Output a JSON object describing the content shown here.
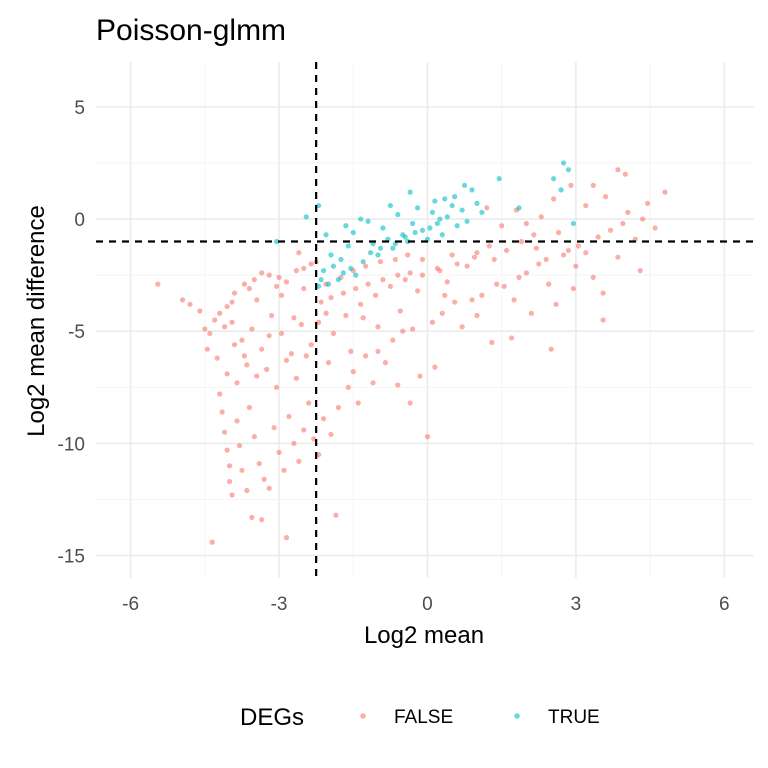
{
  "chart_data": {
    "type": "scatter",
    "title": "Poisson-glmm",
    "xlabel": "Log2 mean",
    "ylabel": "Log2 mean difference",
    "xlim": [
      -6.7,
      6.6
    ],
    "ylim": [
      -16,
      7
    ],
    "x_ticks": [
      -6,
      -3,
      0,
      3,
      6
    ],
    "x_tick_labels": [
      "-6",
      "-3",
      "0",
      "3",
      "6"
    ],
    "y_ticks": [
      5,
      0,
      -5,
      -10,
      -15
    ],
    "y_tick_labels": [
      "5",
      "0",
      "-5",
      "-10",
      "-15"
    ],
    "grid": true,
    "reference_lines": {
      "vertical_x": -2.25,
      "horizontal_y": -1
    },
    "legend": {
      "title": "DEGs",
      "position": "bottom"
    },
    "series": [
      {
        "name": "FALSE",
        "color": "#F8766D",
        "points": [
          [
            -5.45,
            -2.9
          ],
          [
            -4.95,
            -3.6
          ],
          [
            -4.8,
            -3.8
          ],
          [
            -4.6,
            -4.1
          ],
          [
            -4.4,
            -5.1
          ],
          [
            -4.3,
            -4.5
          ],
          [
            -4.2,
            -4.2
          ],
          [
            -4.05,
            -3.9
          ],
          [
            -3.9,
            -3.3
          ],
          [
            -3.7,
            -2.9
          ],
          [
            -3.5,
            -2.7
          ],
          [
            -3.35,
            -2.4
          ],
          [
            -3.2,
            -2.5
          ],
          [
            -3.0,
            -2.6
          ],
          [
            -2.85,
            -2.8
          ],
          [
            -2.65,
            -2.3
          ],
          [
            -2.5,
            -2.2
          ],
          [
            -2.35,
            -2.0
          ],
          [
            -2.25,
            -1.9
          ],
          [
            -2.6,
            -1.5
          ],
          [
            -4.2,
            -7.8
          ],
          [
            -4.15,
            -8.6
          ],
          [
            -4.1,
            -9.5
          ],
          [
            -4.05,
            -10.3
          ],
          [
            -4.0,
            -11.0
          ],
          [
            -4.0,
            -11.7
          ],
          [
            -3.95,
            -12.3
          ],
          [
            -3.85,
            -9.0
          ],
          [
            -3.8,
            -10.1
          ],
          [
            -3.75,
            -11.2
          ],
          [
            -3.65,
            -12.1
          ],
          [
            -3.6,
            -8.4
          ],
          [
            -3.5,
            -9.7
          ],
          [
            -3.4,
            -10.9
          ],
          [
            -3.3,
            -11.6
          ],
          [
            -3.2,
            -12.0
          ],
          [
            -3.1,
            -9.3
          ],
          [
            -3.0,
            -10.4
          ],
          [
            -2.9,
            -11.2
          ],
          [
            -2.8,
            -8.8
          ],
          [
            -2.7,
            -10.0
          ],
          [
            -2.6,
            -10.8
          ],
          [
            -2.5,
            -9.4
          ],
          [
            -2.4,
            -8.2
          ],
          [
            -2.3,
            -9.8
          ],
          [
            -2.2,
            -10.5
          ],
          [
            -2.1,
            -8.9
          ],
          [
            -1.95,
            -9.6
          ],
          [
            -1.8,
            -8.4
          ],
          [
            -1.6,
            -7.5
          ],
          [
            -1.4,
            -8.2
          ],
          [
            -1.1,
            -7.3
          ],
          [
            -0.85,
            -6.4
          ],
          [
            -0.6,
            -7.4
          ],
          [
            -0.35,
            -8.2
          ],
          [
            0.0,
            -9.7
          ],
          [
            -4.35,
            -14.4
          ],
          [
            -3.55,
            -13.3
          ],
          [
            -3.35,
            -13.4
          ],
          [
            -2.85,
            -14.2
          ],
          [
            -1.85,
            -13.2
          ],
          [
            -1.5,
            -6.8
          ],
          [
            -1.25,
            -6.1
          ],
          [
            -1.0,
            -5.9
          ],
          [
            -0.7,
            -5.4
          ],
          [
            -0.5,
            -5.0
          ],
          [
            -0.3,
            -4.9
          ],
          [
            0.1,
            -4.6
          ],
          [
            0.3,
            -4.2
          ],
          [
            0.55,
            -3.7
          ],
          [
            0.7,
            -4.8
          ],
          [
            0.9,
            -3.6
          ],
          [
            1.1,
            -3.4
          ],
          [
            1.3,
            -5.5
          ],
          [
            1.4,
            -2.9
          ],
          [
            1.55,
            -3.0
          ],
          [
            1.7,
            -5.3
          ],
          [
            1.85,
            -2.6
          ],
          [
            2.0,
            -2.4
          ],
          [
            2.1,
            -4.2
          ],
          [
            2.25,
            -2.0
          ],
          [
            2.4,
            -1.8
          ],
          [
            2.5,
            -5.8
          ],
          [
            2.6,
            -3.8
          ],
          [
            2.75,
            -1.6
          ],
          [
            2.85,
            -1.4
          ],
          [
            2.95,
            -3.1
          ],
          [
            3.05,
            -1.2
          ],
          [
            3.2,
            -1.5
          ],
          [
            3.35,
            -2.6
          ],
          [
            3.45,
            -0.8
          ],
          [
            3.55,
            -4.5
          ],
          [
            3.7,
            -0.5
          ],
          [
            3.85,
            -1.7
          ],
          [
            3.95,
            -0.2
          ],
          [
            4.05,
            0.3
          ],
          [
            4.2,
            -0.9
          ],
          [
            4.3,
            -2.3
          ],
          [
            4.45,
            0.7
          ],
          [
            4.6,
            -0.4
          ],
          [
            4.8,
            1.2
          ],
          [
            3.85,
            2.2
          ],
          [
            4.0,
            2.0
          ],
          [
            3.35,
            1.5
          ],
          [
            3.6,
            1.0
          ],
          [
            3.2,
            0.6
          ],
          [
            2.9,
            1.5
          ],
          [
            2.55,
            0.9
          ],
          [
            2.3,
            0.1
          ],
          [
            2.0,
            -0.2
          ],
          [
            1.8,
            0.4
          ],
          [
            1.5,
            -0.3
          ],
          [
            1.2,
            0.5
          ],
          [
            2.65,
            -0.6
          ],
          [
            2.2,
            -1.3
          ],
          [
            1.9,
            -1.0
          ],
          [
            1.6,
            -1.4
          ],
          [
            1.35,
            -1.8
          ],
          [
            1.0,
            -1.5
          ],
          [
            0.8,
            -2.1
          ],
          [
            0.5,
            -1.6
          ],
          [
            0.2,
            -2.2
          ],
          [
            -0.1,
            -1.8
          ],
          [
            -0.35,
            -2.4
          ],
          [
            -0.6,
            -2.5
          ],
          [
            -0.9,
            -2.7
          ],
          [
            -1.2,
            -2.9
          ],
          [
            -1.45,
            -3.1
          ],
          [
            -1.7,
            -3.3
          ],
          [
            -1.95,
            -3.5
          ],
          [
            -2.15,
            -3.7
          ],
          [
            -0.2,
            -3.2
          ],
          [
            0.4,
            -2.8
          ],
          [
            0.15,
            -6.6
          ],
          [
            -0.15,
            -7.0
          ],
          [
            -1.3,
            -4.4
          ],
          [
            -1.0,
            -4.8
          ],
          [
            -2.05,
            -4.2
          ],
          [
            -3.95,
            -4.6
          ],
          [
            -3.75,
            -5.4
          ],
          [
            -3.55,
            -4.9
          ],
          [
            -3.35,
            -5.8
          ],
          [
            -3.15,
            -4.3
          ],
          [
            -2.95,
            -5.1
          ],
          [
            -2.75,
            -6.0
          ],
          [
            -2.55,
            -4.7
          ],
          [
            -2.35,
            -5.6
          ],
          [
            -4.25,
            -6.2
          ],
          [
            -4.05,
            -6.9
          ],
          [
            -3.85,
            -7.3
          ],
          [
            -3.65,
            -6.5
          ],
          [
            -3.45,
            -7.0
          ],
          [
            -3.25,
            -6.7
          ],
          [
            -3.05,
            -7.5
          ],
          [
            -2.85,
            -6.3
          ],
          [
            -2.65,
            -7.1
          ],
          [
            -2.45,
            -6.1
          ],
          [
            -4.45,
            -5.8
          ],
          [
            -4.5,
            -4.9
          ],
          [
            -3.95,
            -3.7
          ],
          [
            -3.45,
            -3.6
          ],
          [
            -2.95,
            -3.4
          ],
          [
            -2.5,
            -3.1
          ],
          [
            -2.05,
            -2.9
          ],
          [
            -1.75,
            -2.6
          ],
          [
            -1.5,
            -2.3
          ],
          [
            -1.25,
            -2.1
          ],
          [
            -0.95,
            -1.9
          ],
          [
            -0.65,
            -1.8
          ],
          [
            -0.4,
            -1.6
          ],
          [
            -3.05,
            -3.0
          ],
          [
            -3.6,
            -3.1
          ],
          [
            -4.1,
            -4.8
          ],
          [
            -3.9,
            -5.6
          ],
          [
            -3.7,
            -6.1
          ],
          [
            -3.2,
            -5.2
          ],
          [
            -2.7,
            -4.4
          ],
          [
            -2.2,
            -4.6
          ],
          [
            -1.9,
            -5.1
          ],
          [
            -1.65,
            -4.3
          ],
          [
            -1.35,
            -3.8
          ],
          [
            -1.05,
            -3.4
          ],
          [
            -0.75,
            -3.0
          ],
          [
            -0.45,
            -2.7
          ],
          [
            -0.1,
            -2.5
          ],
          [
            0.25,
            -2.3
          ],
          [
            0.6,
            -2.0
          ],
          [
            0.95,
            -1.7
          ],
          [
            1.25,
            -1.2
          ],
          [
            2.45,
            -2.9
          ],
          [
            3.0,
            -2.1
          ],
          [
            3.55,
            -3.3
          ],
          [
            1.75,
            -3.6
          ],
          [
            1.0,
            -4.3
          ],
          [
            2.15,
            -0.7
          ],
          [
            4.35,
            0.0
          ],
          [
            0.35,
            -3.4
          ],
          [
            -0.55,
            -4.1
          ],
          [
            -1.55,
            -5.9
          ],
          [
            -2.0,
            -6.4
          ]
        ]
      },
      {
        "name": "TRUE",
        "color": "#00BFC4",
        "points": [
          [
            -3.05,
            -1.0
          ],
          [
            -2.45,
            0.1
          ],
          [
            -2.2,
            0.6
          ],
          [
            -2.05,
            -0.7
          ],
          [
            -1.95,
            -1.6
          ],
          [
            -2.1,
            -2.3
          ],
          [
            -2.2,
            -3.0
          ],
          [
            -2.15,
            -2.7
          ],
          [
            -1.9,
            -2.1
          ],
          [
            -1.75,
            -1.8
          ],
          [
            -1.6,
            -1.2
          ],
          [
            -1.5,
            -0.6
          ],
          [
            -1.45,
            -2.5
          ],
          [
            -1.3,
            -1.9
          ],
          [
            -1.2,
            -0.1
          ],
          [
            -1.1,
            -1.1
          ],
          [
            -1.0,
            -1.6
          ],
          [
            -0.9,
            -0.4
          ],
          [
            -0.8,
            -0.9
          ],
          [
            -0.7,
            -1.3
          ],
          [
            -0.6,
            0.2
          ],
          [
            -0.5,
            -0.7
          ],
          [
            -0.4,
            -1.0
          ],
          [
            -0.3,
            -0.2
          ],
          [
            -0.2,
            0.5
          ],
          [
            -0.1,
            -0.5
          ],
          [
            0.0,
            -0.9
          ],
          [
            0.1,
            0.3
          ],
          [
            0.2,
            -0.2
          ],
          [
            0.3,
            -0.7
          ],
          [
            0.4,
            0.1
          ],
          [
            0.5,
            0.6
          ],
          [
            0.6,
            -0.3
          ],
          [
            0.7,
            0.4
          ],
          [
            0.8,
            -0.1
          ],
          [
            0.9,
            1.3
          ],
          [
            1.0,
            0.7
          ],
          [
            1.1,
            0.3
          ],
          [
            0.75,
            1.5
          ],
          [
            0.55,
            1.0
          ],
          [
            0.35,
            0.9
          ],
          [
            0.15,
            0.8
          ],
          [
            -0.35,
            1.2
          ],
          [
            -0.75,
            0.6
          ],
          [
            -1.35,
            0.0
          ],
          [
            -1.65,
            -0.3
          ],
          [
            1.45,
            1.8
          ],
          [
            2.75,
            2.5
          ],
          [
            2.85,
            2.2
          ],
          [
            2.55,
            1.8
          ],
          [
            2.7,
            1.3
          ],
          [
            1.85,
            0.5
          ],
          [
            2.95,
            -0.2
          ],
          [
            -1.8,
            -2.7
          ],
          [
            -2.0,
            -2.9
          ],
          [
            -1.7,
            -2.4
          ],
          [
            -1.55,
            -2.2
          ],
          [
            -1.15,
            -1.5
          ],
          [
            -0.95,
            -1.3
          ],
          [
            -0.65,
            -1.1
          ],
          [
            -0.45,
            -0.8
          ],
          [
            -0.25,
            -0.6
          ],
          [
            0.05,
            -0.4
          ],
          [
            0.25,
            0.0
          ]
        ]
      }
    ]
  }
}
